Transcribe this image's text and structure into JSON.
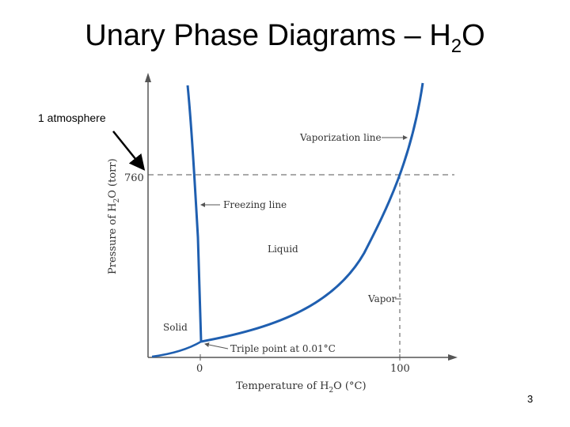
{
  "slide": {
    "title_main": "Unary Phase Diagrams – H",
    "title_sub": "2",
    "title_end": "O",
    "callout": "1 atmosphere",
    "page_number": "3"
  },
  "diagram": {
    "y_axis": {
      "prefix": "Pressure of H",
      "sub": "2",
      "suffix": "O (torr)",
      "tick": "760"
    },
    "x_axis": {
      "prefix": "Temperature of H",
      "sub": "2",
      "suffix": "O (°C)",
      "ticks": [
        "0",
        "100"
      ]
    },
    "region_labels": {
      "solid": "Solid",
      "liquid": "Liquid",
      "vapor": "Vapor"
    },
    "line_labels": {
      "vaporization": "Vaporization line",
      "freezing": "Freezing line",
      "triple_point": "Triple point at 0.01°C"
    },
    "colors": {
      "curve": "#1f5fb0",
      "axis": "#555555",
      "arrow": "#000000"
    }
  }
}
